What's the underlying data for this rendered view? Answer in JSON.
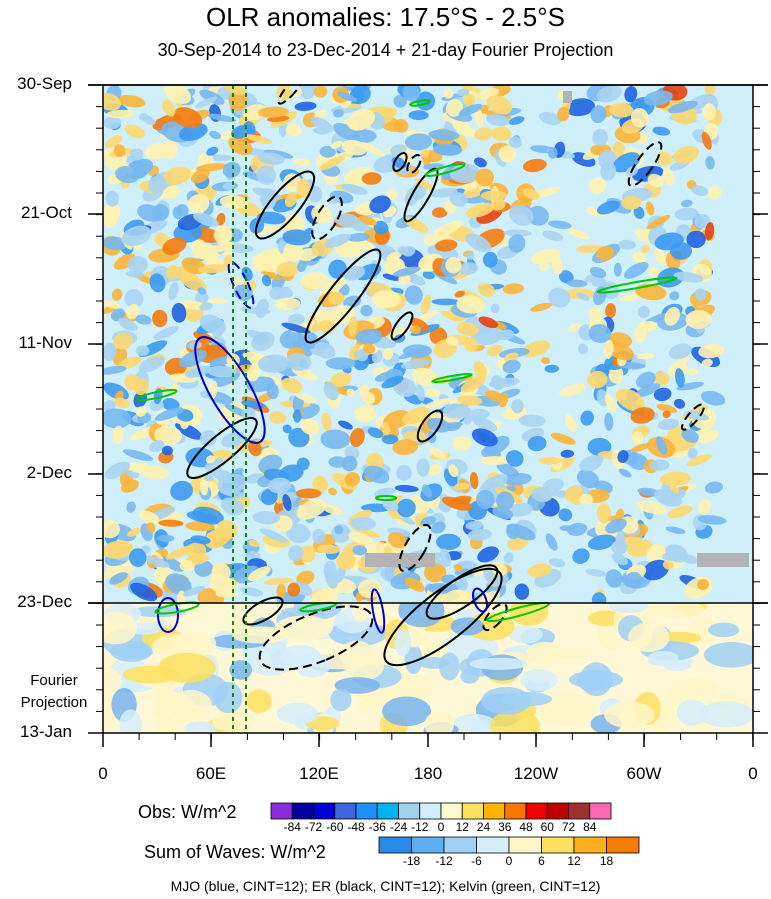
{
  "chart_data": {
    "type": "heatmap",
    "title": "OLR anomalies: 17.5°S - 2.5°S",
    "subtitle": "30-Sep-2014 to 23-Dec-2014 + 21-day Fourier Projection",
    "y_ticks": [
      "30-Sep",
      "21-Oct",
      "11-Nov",
      "2-Dec",
      "23-Dec",
      "13-Jan"
    ],
    "x_ticks": [
      "0",
      "60E",
      "120E",
      "180",
      "120W",
      "60W",
      "0"
    ],
    "fourier_label": [
      "Fourier",
      "Projection"
    ],
    "obs_legend": {
      "label": "Obs: W/m^2",
      "levels": [
        "-84",
        "-72",
        "-60",
        "-48",
        "-36",
        "-24",
        "-12",
        "0",
        "12",
        "24",
        "36",
        "48",
        "60",
        "72",
        "84"
      ],
      "colors": [
        "#8a2be2",
        "#0000a0",
        "#0000d0",
        "#3c64dc",
        "#1e90ff",
        "#00b4f0",
        "#a0d2f0",
        "#d2f0fa",
        "#fffad0",
        "#fde060",
        "#fdb400",
        "#fa7800",
        "#f00000",
        "#c00000",
        "#a03030",
        "#ff69b4"
      ]
    },
    "sum_legend": {
      "label": "Sum of Waves: W/m^2",
      "levels": [
        "-18",
        "-12",
        "-6",
        "0",
        "6",
        "12",
        "18"
      ],
      "colors": [
        "#2a8ae8",
        "#5cb0f0",
        "#a0d0f6",
        "#d6eefa",
        "#fff6c8",
        "#fde060",
        "#fbb020",
        "#f47c00"
      ]
    },
    "footer": "MJO (blue, CINT=12); ER (black, CINT=12); Kelvin (green, CINT=12)",
    "series_colors": {
      "MJO": "#0000c8",
      "ER": "#000000",
      "Kelvin": "#00c800"
    }
  }
}
